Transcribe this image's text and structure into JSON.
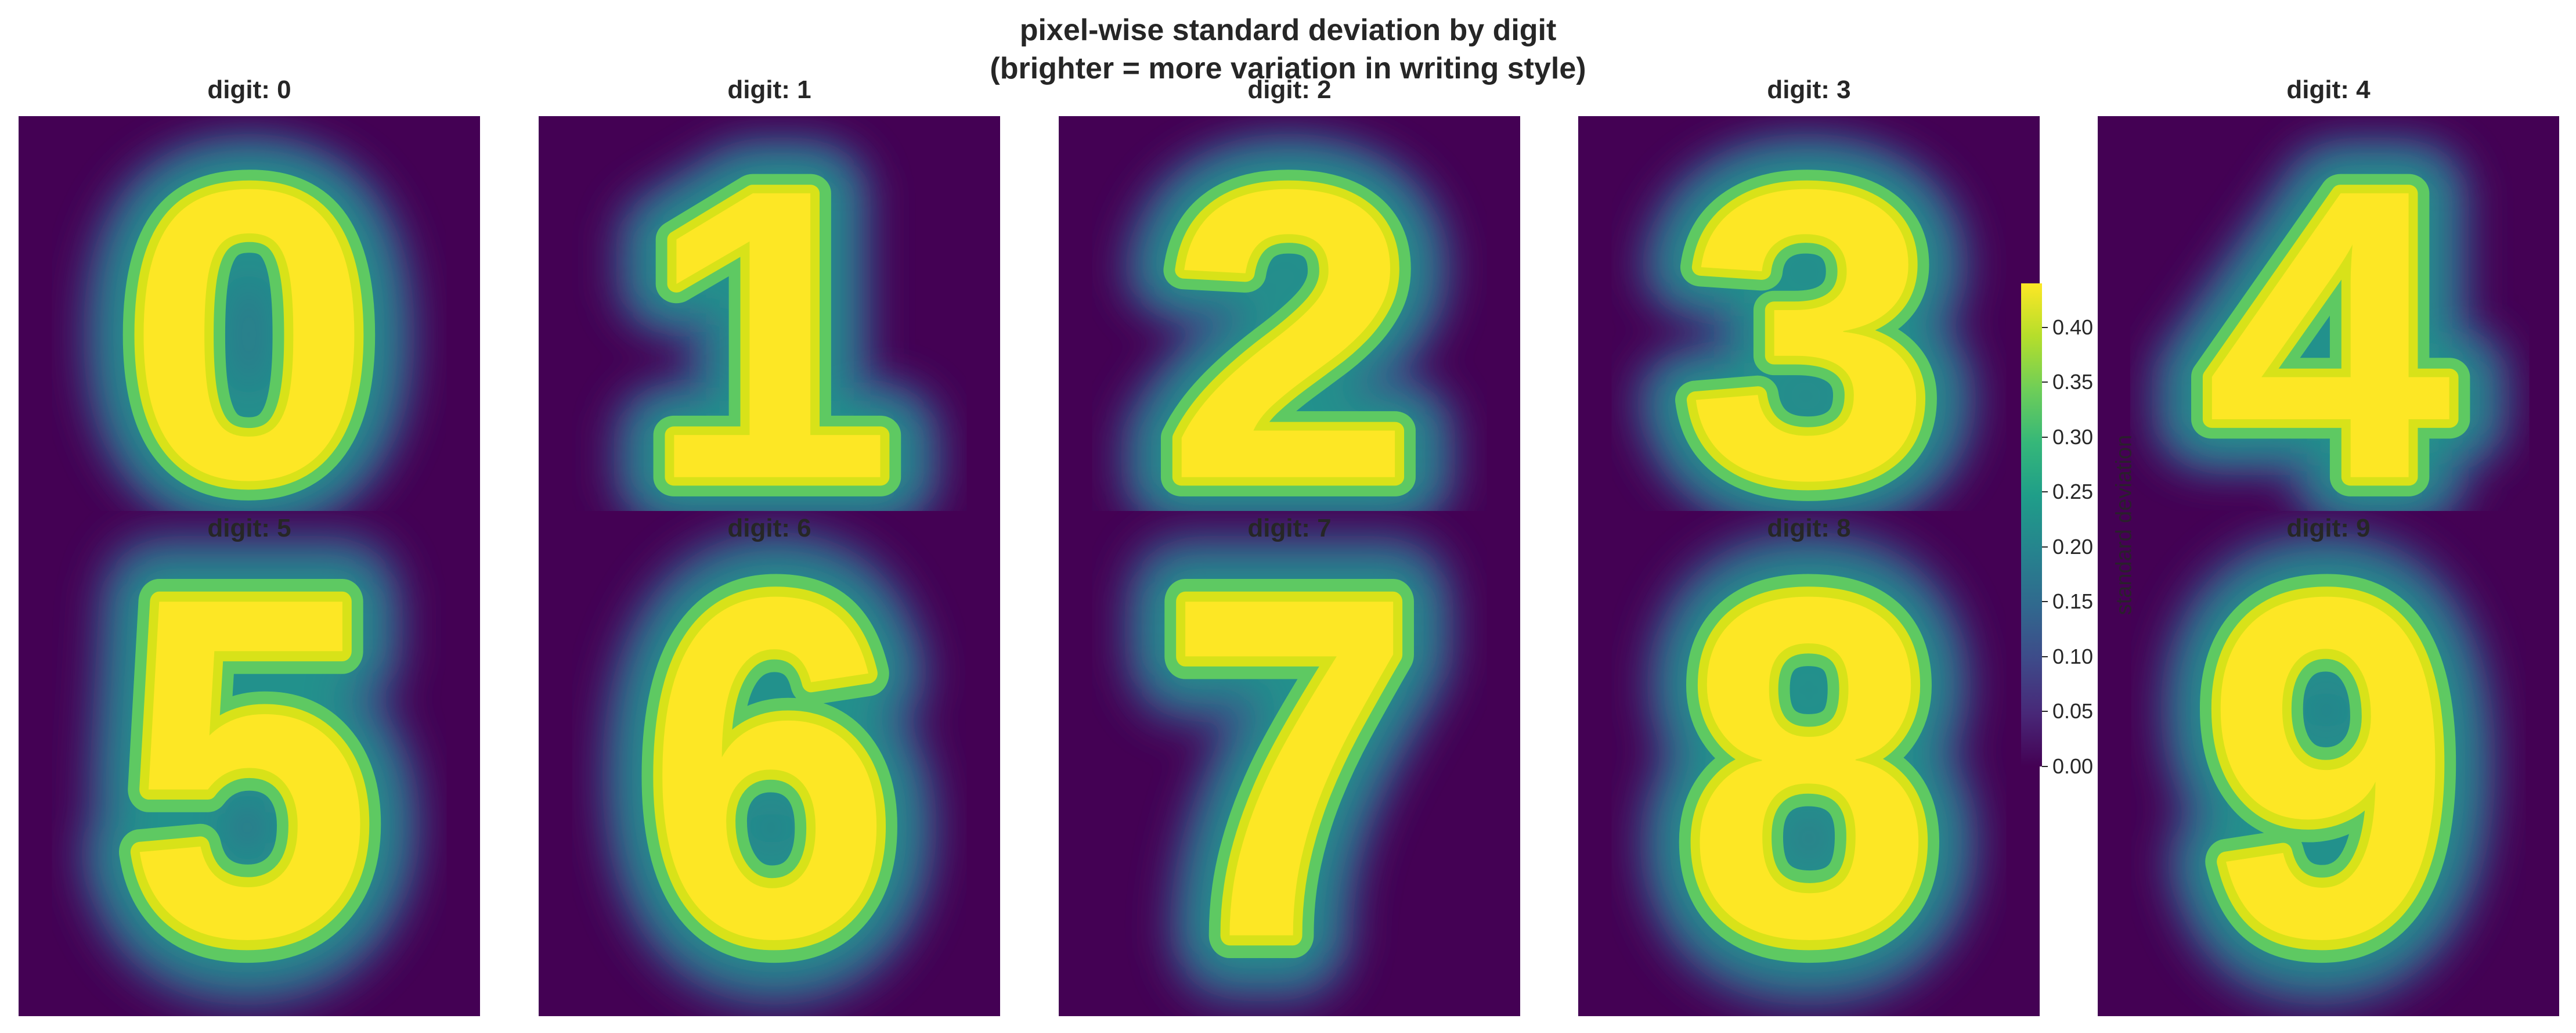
{
  "chart_data": {
    "type": "heatmap",
    "title": "pixel-wise standard deviation by digit",
    "subtitle": "(brighter = more variation in writing style)",
    "colormap": "viridis",
    "colorbar": {
      "label": "standard deviation",
      "vmin": 0.0,
      "vmax": 0.44,
      "ticks": [
        "0.00",
        "0.05",
        "0.10",
        "0.15",
        "0.20",
        "0.25",
        "0.30",
        "0.35",
        "0.40"
      ]
    },
    "grid": false,
    "panels": [
      {
        "title": "digit: 0",
        "digit": "0"
      },
      {
        "title": "digit: 1",
        "digit": "1"
      },
      {
        "title": "digit: 2",
        "digit": "2"
      },
      {
        "title": "digit: 3",
        "digit": "3"
      },
      {
        "title": "digit: 4",
        "digit": "4"
      },
      {
        "title": "digit: 5",
        "digit": "5"
      },
      {
        "title": "digit: 6",
        "digit": "6"
      },
      {
        "title": "digit: 7",
        "digit": "7"
      },
      {
        "title": "digit: 8",
        "digit": "8"
      },
      {
        "title": "digit: 9",
        "digit": "9"
      }
    ]
  }
}
